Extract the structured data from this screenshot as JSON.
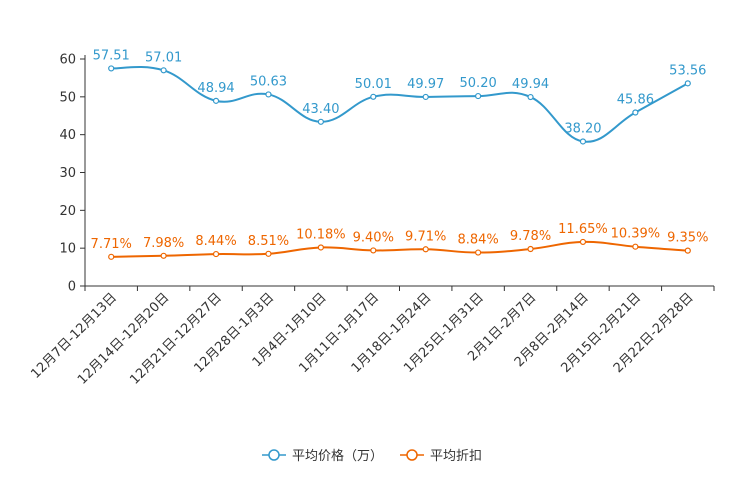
{
  "chart_data": {
    "type": "line",
    "title": "",
    "xlabel": "",
    "ylabel": "",
    "ylim": [
      0,
      60
    ],
    "yticks": [
      0,
      10,
      20,
      30,
      40,
      50,
      60
    ],
    "legend_position": "bottom-center",
    "categories": [
      "12月7日-12月13日",
      "12月14日-12月20日",
      "12月21日-12月27日",
      "12月28日-1月3日",
      "1月4日-1月10日",
      "1月11日-1月17日",
      "1月18日-1月24日",
      "1月25日-1月31日",
      "2月1日-2月7日",
      "2月8日-2月14日",
      "2月15日-2月21日",
      "2月22日-2月28日"
    ],
    "series": [
      {
        "name": "平均价格（万）",
        "color": "#3399cc",
        "values": [
          57.51,
          57.01,
          48.94,
          50.63,
          43.4,
          50.01,
          49.97,
          50.2,
          49.94,
          38.2,
          45.86,
          53.56
        ],
        "labels": [
          "57.51",
          "57.01",
          "48.94",
          "50.63",
          "43.40",
          "50.01",
          "49.97",
          "50.20",
          "49.94",
          "38.20",
          "45.86",
          "53.56"
        ]
      },
      {
        "name": "平均折扣",
        "color": "#ee6600",
        "values": [
          7.71,
          7.98,
          8.44,
          8.51,
          10.18,
          9.4,
          9.71,
          8.84,
          9.78,
          11.65,
          10.39,
          9.35
        ],
        "labels": [
          "7.71%",
          "7.98%",
          "8.44%",
          "8.51%",
          "10.18%",
          "9.40%",
          "9.71%",
          "8.84%",
          "9.78%",
          "11.65%",
          "10.39%",
          "9.35%"
        ]
      }
    ]
  }
}
